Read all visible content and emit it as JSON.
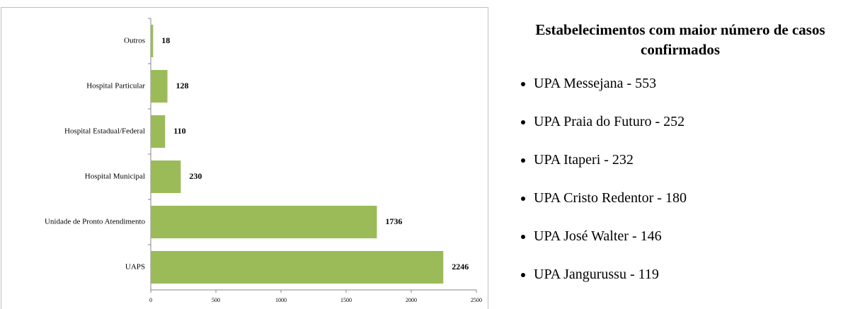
{
  "chart_data": {
    "type": "bar",
    "orientation": "horizontal",
    "categories": [
      "Outros",
      "Hospital Particular",
      "Hospital Estadual/Federal",
      "Hospital Municipal",
      "Unidade de Pronto Atendimento",
      "UAPS"
    ],
    "values": [
      18,
      128,
      110,
      230,
      1736,
      2246
    ],
    "color": "#9bbb59",
    "xlim": [
      0,
      2500
    ],
    "xticks": [
      0,
      500,
      1000,
      1500,
      2000,
      2500
    ],
    "grid": false
  },
  "panel": {
    "title": "Estabelecimentos com maior número de casos confirmados",
    "items": [
      "UPA Messejana - 553",
      "UPA Praia do Futuro - 252",
      "UPA Itaperi - 232",
      "UPA Cristo Redentor - 180",
      "UPA José Walter - 146",
      "UPA Jangurussu - 119"
    ]
  }
}
